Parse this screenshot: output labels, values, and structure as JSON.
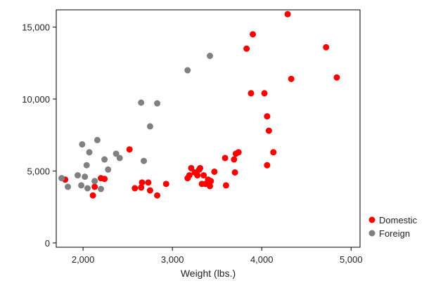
{
  "chart_data": {
    "type": "scatter",
    "xlabel": "Weight (lbs.)",
    "ylabel": "",
    "xlim": [
      1700,
      5100
    ],
    "ylim": [
      -300,
      16200
    ],
    "xticks": [
      2000,
      3000,
      4000,
      5000
    ],
    "xtick_labels": [
      "2,000",
      "3,000",
      "4,000",
      "5,000"
    ],
    "yticks": [
      0,
      5000,
      10000,
      15000
    ],
    "ytick_labels": [
      "0",
      "5,000",
      "10,000",
      "15,000"
    ],
    "grid": false,
    "legend": "right-bottom, outside plot",
    "series": [
      {
        "name": "Domestic",
        "color": "#ff0000",
        "points": [
          [
            1800,
            4400
          ],
          [
            2110,
            3300
          ],
          [
            2130,
            3900
          ],
          [
            2200,
            4500
          ],
          [
            2240,
            4450
          ],
          [
            2520,
            6500
          ],
          [
            2580,
            3800
          ],
          [
            2650,
            3850
          ],
          [
            2660,
            4200
          ],
          [
            2730,
            4200
          ],
          [
            2750,
            3650
          ],
          [
            2830,
            3300
          ],
          [
            2930,
            4100
          ],
          [
            3170,
            4500
          ],
          [
            3190,
            4700
          ],
          [
            3210,
            5200
          ],
          [
            3250,
            4900
          ],
          [
            3280,
            4700
          ],
          [
            3300,
            5100
          ],
          [
            3310,
            5200
          ],
          [
            3330,
            4100
          ],
          [
            3350,
            4700
          ],
          [
            3370,
            4100
          ],
          [
            3400,
            4400
          ],
          [
            3420,
            3950
          ],
          [
            3430,
            4300
          ],
          [
            3470,
            4950
          ],
          [
            3590,
            5900
          ],
          [
            3600,
            4000
          ],
          [
            3690,
            5800
          ],
          [
            3700,
            4900
          ],
          [
            3710,
            6200
          ],
          [
            3740,
            6300
          ],
          [
            3830,
            13500
          ],
          [
            3880,
            10400
          ],
          [
            3900,
            14500
          ],
          [
            4030,
            10400
          ],
          [
            4060,
            5400
          ],
          [
            4060,
            8800
          ],
          [
            4080,
            7800
          ],
          [
            4130,
            6300
          ],
          [
            4290,
            15900
          ],
          [
            4330,
            11400
          ],
          [
            4720,
            13600
          ],
          [
            4840,
            11500
          ]
        ]
      },
      {
        "name": "Foreign",
        "color": "#808080",
        "points": [
          [
            1760,
            4500
          ],
          [
            1830,
            3900
          ],
          [
            1940,
            4700
          ],
          [
            1980,
            4000
          ],
          [
            1990,
            6850
          ],
          [
            2020,
            4600
          ],
          [
            2040,
            5400
          ],
          [
            2050,
            3800
          ],
          [
            2070,
            6300
          ],
          [
            2130,
            4300
          ],
          [
            2160,
            7150
          ],
          [
            2200,
            3750
          ],
          [
            2240,
            5800
          ],
          [
            2280,
            5100
          ],
          [
            2370,
            6200
          ],
          [
            2410,
            5900
          ],
          [
            2650,
            9750
          ],
          [
            2680,
            5700
          ],
          [
            2750,
            8100
          ],
          [
            2830,
            9700
          ],
          [
            3170,
            12000
          ],
          [
            3420,
            13000
          ]
        ]
      }
    ]
  }
}
